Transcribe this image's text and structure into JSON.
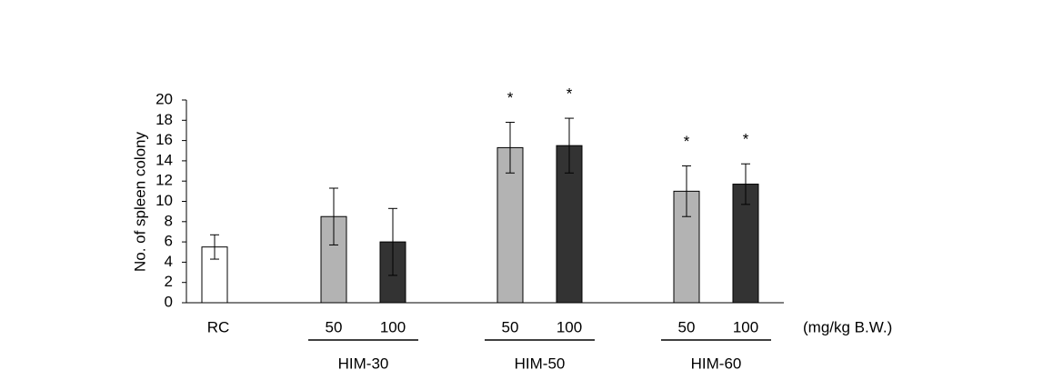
{
  "chart_data": {
    "type": "bar",
    "y_label": "No. of spleen colony",
    "categories": [
      "RC",
      "50",
      "100",
      "50",
      "100",
      "50",
      "100"
    ],
    "groups": [
      "HIM-30",
      "HIM-50",
      "HIM-60"
    ],
    "unit_label": "(mg/kg B.W.)",
    "values": [
      5.5,
      8.5,
      6.0,
      15.3,
      15.5,
      11.0,
      11.7
    ],
    "errors": [
      1.2,
      2.8,
      3.3,
      2.5,
      2.7,
      2.5,
      2.0
    ],
    "colors": [
      "#ffffff",
      "#b3b3b3",
      "#333333",
      "#b3b3b3",
      "#333333",
      "#b3b3b3",
      "#333333"
    ],
    "annotations": [
      null,
      null,
      null,
      "*",
      "*",
      "*",
      "*"
    ],
    "ylim": [
      0,
      20
    ],
    "yticks": [
      0,
      2,
      4,
      6,
      8,
      10,
      12,
      14,
      16,
      18,
      20
    ]
  }
}
